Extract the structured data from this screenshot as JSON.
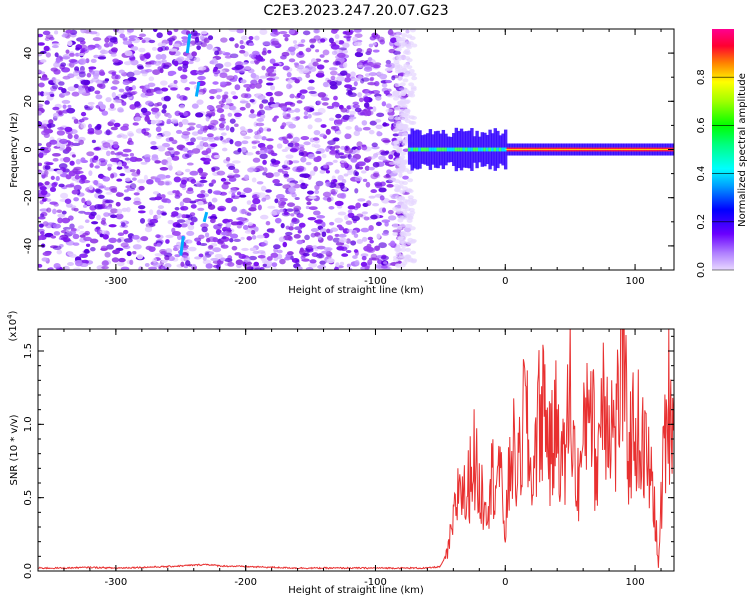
{
  "title": "C2E3.2023.247.20.07.G23",
  "colors": {
    "spectrogram_purple": "#8a2be2",
    "spectrogram_light": "#d6b8f5",
    "snr_line": "#e83030",
    "colorbar": [
      "#ff00ff",
      "#ff0033",
      "#ff7f00",
      "#ffff00",
      "#7fff00",
      "#00ff00",
      "#00ffb0",
      "#00ffff",
      "#0080ff",
      "#0000ff",
      "#8000ff",
      "#d0b0ff"
    ]
  },
  "chart_data": [
    {
      "type": "heatmap",
      "title": "C2E3.2023.247.20.07.G23",
      "xlabel": "Height of straight line (km)",
      "ylabel": "Frequency (Hz)",
      "xlim": [
        -360,
        130
      ],
      "ylim": [
        -50,
        50
      ],
      "xticks": [
        -300,
        -200,
        -100,
        0,
        100
      ],
      "yticks": [
        -40,
        -20,
        0,
        20,
        40
      ],
      "xtick_labels": [
        "-300",
        "-200",
        "-100",
        "0",
        "100"
      ],
      "ytick_labels": [
        "-40",
        "-20",
        "0",
        "20",
        "40"
      ],
      "noise_region_x": [
        -360,
        -75
      ],
      "signal_band_hz": [
        -5,
        5
      ],
      "signal_onset_x": -75,
      "colorbar": {
        "label": "Normalized spectral amplitude",
        "range": [
          0,
          1
        ],
        "ticks": [
          0.0,
          0.2,
          0.4,
          0.6,
          0.8
        ],
        "tick_labels": [
          "0.0",
          "0.2",
          "0.4",
          "0.6",
          "0.8"
        ]
      }
    },
    {
      "type": "line",
      "xlabel": "Height of straight line (km)",
      "ylabel": "SNR (10 * v/v)",
      "scale_label": "(x10",
      "scale_exp": "4",
      "scale_close": ")",
      "xlim": [
        -360,
        130
      ],
      "ylim": [
        0,
        1.65
      ],
      "xticks": [
        -300,
        -200,
        -100,
        0,
        100
      ],
      "yticks": [
        0.0,
        0.5,
        1.0,
        1.5
      ],
      "xtick_labels": [
        "-300",
        "-200",
        "-100",
        "0",
        "100"
      ],
      "ytick_labels": [
        "0.0",
        "0.5",
        "1.0",
        "1.5"
      ],
      "series": [
        {
          "color": "#e83030",
          "x": [
            -360,
            -340,
            -320,
            -300,
            -280,
            -260,
            -240,
            -230,
            -220,
            -200,
            -180,
            -160,
            -140,
            -120,
            -100,
            -80,
            -60,
            -50,
            -45,
            -40,
            -35,
            -30,
            -25,
            -20,
            -15,
            -10,
            -5,
            0,
            5,
            10,
            15,
            20,
            25,
            30,
            35,
            40,
            45,
            50,
            55,
            60,
            65,
            70,
            75,
            80,
            85,
            90,
            95,
            100,
            105,
            110,
            115,
            118,
            120,
            125,
            130
          ],
          "y": [
            0.02,
            0.02,
            0.025,
            0.02,
            0.025,
            0.03,
            0.04,
            0.045,
            0.035,
            0.03,
            0.025,
            0.02,
            0.02,
            0.02,
            0.02,
            0.02,
            0.02,
            0.03,
            0.12,
            0.35,
            0.7,
            0.5,
            0.9,
            0.6,
            0.55,
            0.7,
            0.8,
            0.3,
            0.95,
            0.7,
            1.25,
            0.65,
            1.1,
            1.3,
            0.85,
            1.15,
            0.75,
            1.35,
            0.6,
            0.9,
            1.55,
            0.7,
            1.4,
            1.2,
            1.0,
            1.62,
            0.9,
            1.1,
            0.95,
            0.8,
            0.5,
            0.02,
            0.5,
            1.3,
            1.2
          ]
        }
      ]
    }
  ]
}
